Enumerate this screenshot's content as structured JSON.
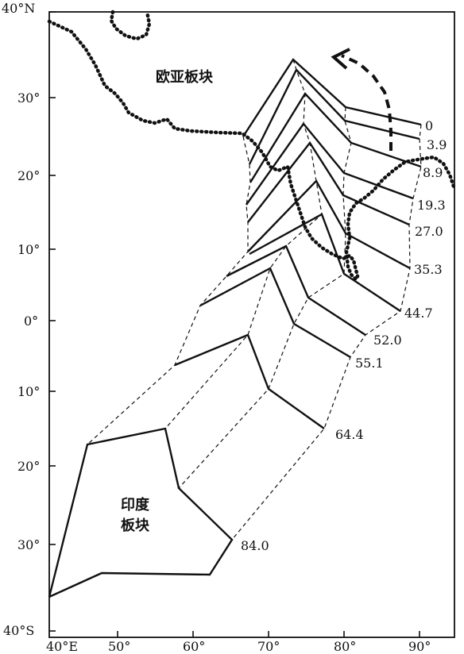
{
  "lat_labels": [
    "40°N",
    "30°",
    "20°",
    "10°",
    "0°",
    "10°",
    "20°",
    "30°",
    "40°S"
  ],
  "lon_labels": [
    "40°E",
    "50°",
    "60°",
    "70°",
    "80°",
    "90°"
  ],
  "plates": {
    "eurasia": "欧亚板块",
    "india_line1": "印度",
    "india_line2": "板块"
  },
  "ages": [
    "0",
    "3.9",
    "8.9",
    "19.3",
    "27.0",
    "35.3",
    "44.7",
    "52.0",
    "55.1",
    "64.4",
    "84.0"
  ]
}
